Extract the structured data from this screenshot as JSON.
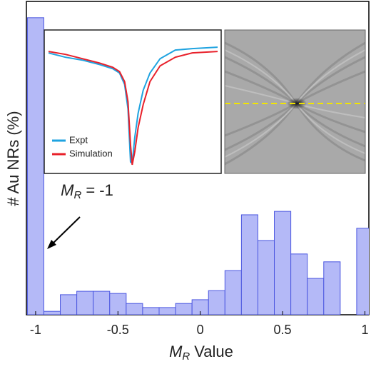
{
  "chart_data": [
    {
      "type": "histogram",
      "x_label": {
        "symbol": "M",
        "subscript": "R",
        "text": "Value"
      },
      "y_label": "# Au NRs (%)",
      "annotation": {
        "symbol": "M",
        "subscript": "R",
        "text": "= -1"
      },
      "bins": [
        -1.05,
        -0.95,
        -0.85,
        -0.75,
        -0.65,
        -0.55,
        -0.45,
        -0.35,
        -0.25,
        -0.15,
        -0.05,
        0.05,
        0.15,
        0.25,
        0.35,
        0.45,
        0.55,
        0.65,
        0.75,
        0.85,
        0.95,
        1.05
      ],
      "values": [
        94.8,
        1.1,
        6.4,
        7.5,
        7.5,
        6.8,
        3.6,
        2.3,
        2.3,
        3.6,
        4.8,
        7.7,
        14.1,
        31.9,
        23.7,
        33.0,
        19.4,
        11.6,
        16.9,
        0,
        27.6
      ],
      "color": "#b4b9f7",
      "edge_color": "#4b57e0",
      "xlim": [
        -1.056,
        1.024
      ],
      "ylim": [
        0,
        100
      ],
      "xticks": [
        -1,
        -0.5,
        0,
        0.5,
        1
      ]
    },
    {
      "type": "line",
      "x": [
        0,
        10,
        20,
        30,
        38,
        42,
        45,
        47,
        48.5,
        49.5,
        51,
        53,
        56,
        60,
        66,
        75,
        85,
        100
      ],
      "series": [
        {
          "name": "Expt",
          "color": "#1fa3e0",
          "values": [
            84,
            81,
            79,
            76,
            73,
            70,
            62,
            45,
            8,
            7,
            25,
            42,
            58,
            70,
            80,
            86,
            87,
            88
          ]
        },
        {
          "name": "Simulation",
          "color": "#e8202a",
          "values": [
            85,
            83,
            80,
            77,
            74,
            71,
            64,
            50,
            20,
            6,
            15,
            32,
            48,
            64,
            75,
            81,
            84,
            85
          ]
        }
      ],
      "xlim": [
        0,
        100
      ],
      "ylim": [
        0,
        100
      ]
    }
  ]
}
